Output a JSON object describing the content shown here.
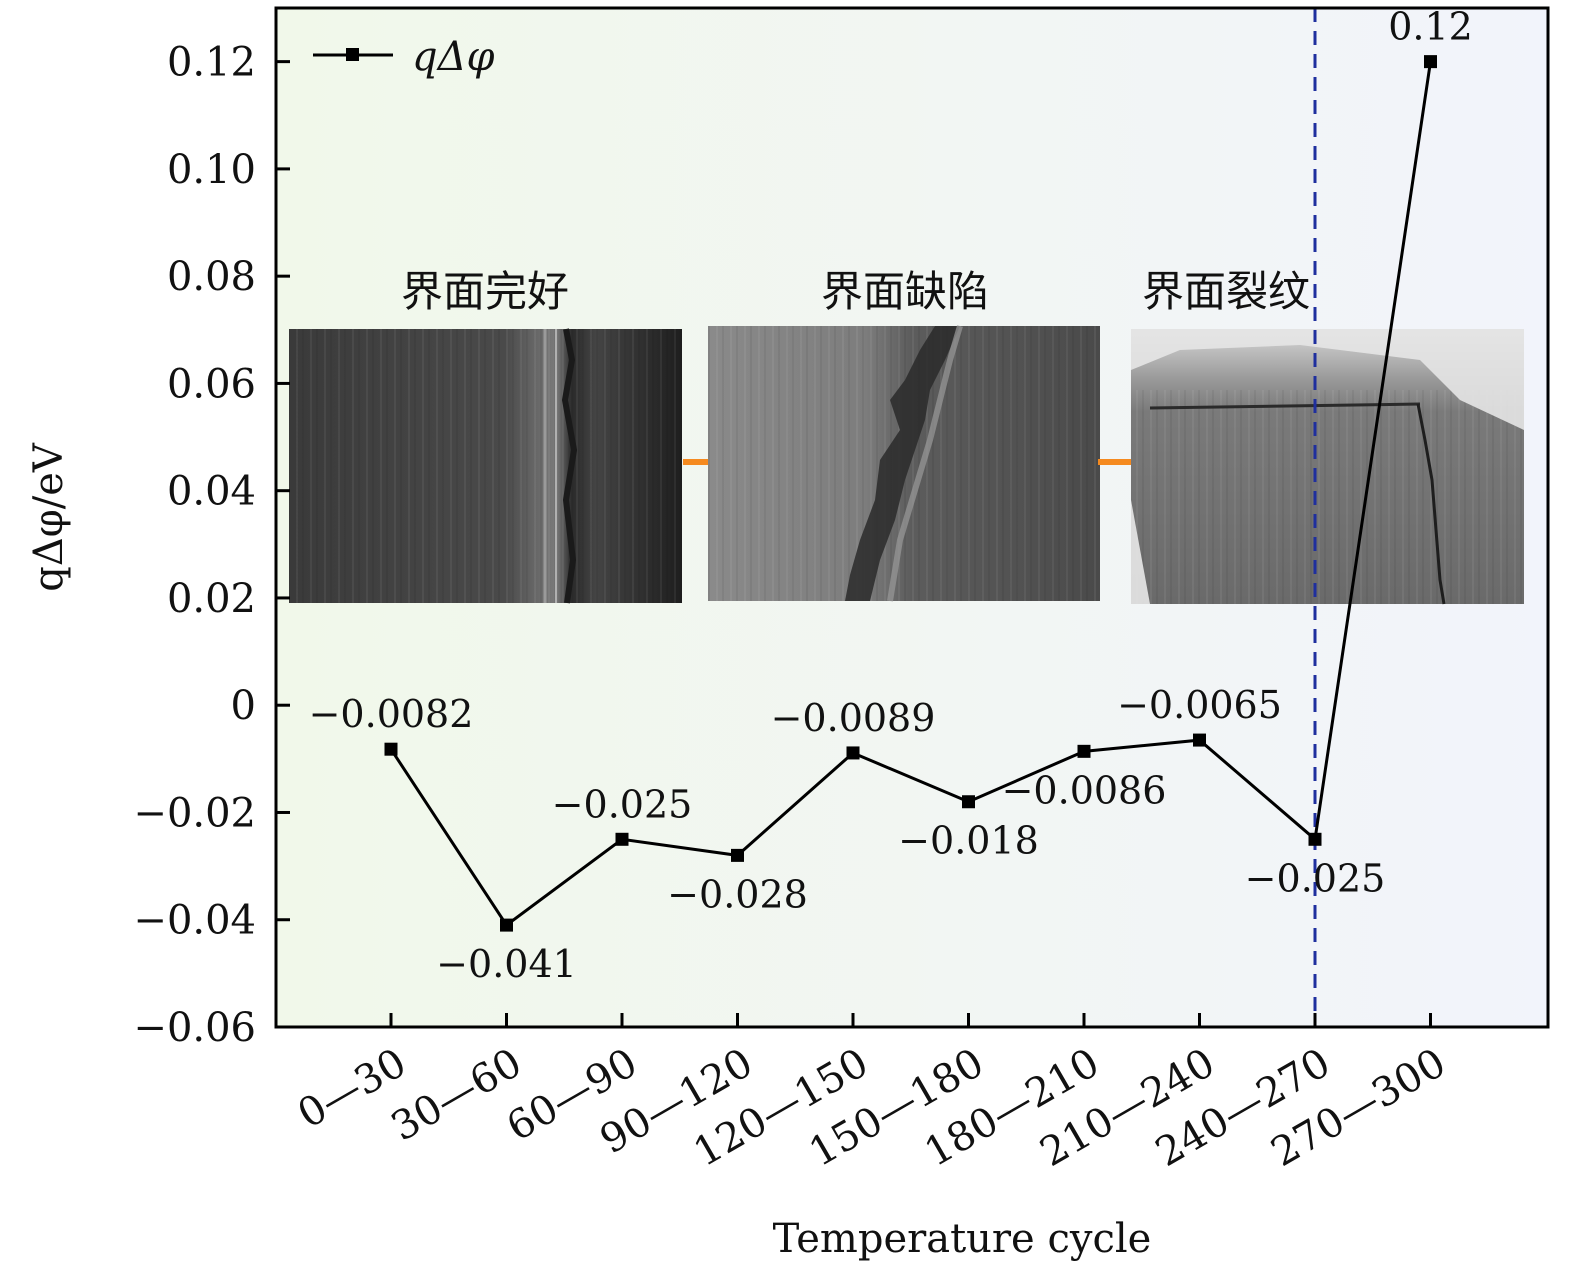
{
  "chart_data": {
    "type": "line",
    "categories": [
      "0—30",
      "30—60",
      "60—90",
      "90—120",
      "120—150",
      "150—180",
      "180—210",
      "210—240",
      "240—270",
      "270—300"
    ],
    "series": [
      {
        "name": "qΔφ",
        "values": [
          -0.0082,
          -0.041,
          -0.025,
          -0.028,
          -0.0089,
          -0.018,
          -0.0086,
          -0.0065,
          -0.025,
          0.12
        ],
        "data_labels": [
          "−0.0082",
          "−0.041",
          "−0.025",
          "−0.028",
          "−0.0089",
          "−0.018",
          "−0.0086",
          "−0.0065",
          "−0.025",
          "0.12"
        ],
        "color": "#000000"
      }
    ],
    "xlabel": "Temperature cycle",
    "ylabel": "qΔφ/eV",
    "ylim": [
      -0.06,
      0.13
    ],
    "yticks": [
      -0.06,
      -0.04,
      -0.02,
      0,
      0.02,
      0.04,
      0.06,
      0.08,
      0.1,
      0.12
    ],
    "ytick_labels": [
      "−0.06",
      "−0.04",
      "−0.02",
      "0",
      "0.02",
      "0.04",
      "0.06",
      "0.08",
      "0.10",
      "0.12"
    ],
    "legend_position": "top-left",
    "grid": false,
    "vertical_marker": {
      "after_category": "240—270",
      "color": "#1f2f9e",
      "style": "dashed"
    },
    "background_gradient": [
      "#f1f8ea",
      "#f2f4fb"
    ],
    "insets": [
      {
        "title": "界面完好"
      },
      {
        "title": "界面缺陷"
      },
      {
        "title": "界面裂纹"
      }
    ],
    "arrow_color": "#f58a1f"
  }
}
